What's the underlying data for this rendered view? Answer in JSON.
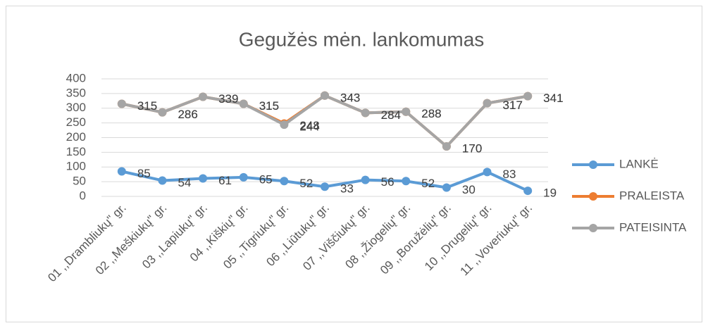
{
  "chart_data": {
    "type": "line",
    "title": "Gegužės mėn. lankomumas",
    "categories": [
      "01 ,,Drambliukų\" gr.",
      "02 ,,Meškiukų\" gr.",
      "03 ,,Lapiukų\" gr.",
      "04 ,,Kiškių\" gr.",
      "05 ,,Tigriukų\" gr.",
      "06 ,,Liūtukų\" gr.",
      "07 ,,Viščiukų\" gr.",
      "08 ,,Žiogelių\" gr.",
      "09 ,,Boružėlių\" gr.",
      "10 ,,Drugelių\" gr.",
      "11 ,,Voveriukų\" gr."
    ],
    "series": [
      {
        "name": "LANKĖ",
        "color": "#5b9bd5",
        "values": [
          85,
          54,
          61,
          65,
          52,
          33,
          56,
          52,
          30,
          83,
          19
        ]
      },
      {
        "name": "PRALEISTA",
        "color": "#ed7d31",
        "values": [
          315,
          286,
          339,
          315,
          248,
          343,
          284,
          288,
          170,
          317,
          341
        ]
      },
      {
        "name": "PATEISINTA",
        "color": "#a5a5a5",
        "values": [
          315,
          286,
          339,
          315,
          244,
          343,
          284,
          288,
          170,
          317,
          341
        ]
      }
    ],
    "ylim": [
      0,
      400
    ],
    "yticks": [
      0,
      50,
      100,
      150,
      200,
      250,
      300,
      350,
      400
    ],
    "grid": true,
    "legend": "right"
  }
}
